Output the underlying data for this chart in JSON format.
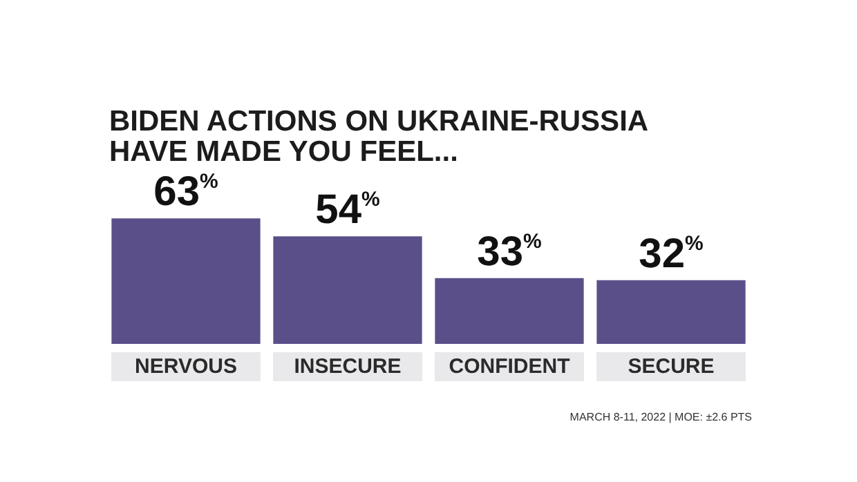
{
  "chart_data": {
    "type": "bar",
    "title": "BIDEN ACTIONS ON UKRAINE-RUSSIA\nHAVE MADE YOU FEEL...",
    "categories": [
      "NERVOUS",
      "INSECURE",
      "CONFIDENT",
      "SECURE"
    ],
    "values": [
      63,
      54,
      33,
      32
    ],
    "color": "#5b4f8a",
    "value_labels": [
      "63%",
      "54%",
      "33%",
      "32%"
    ],
    "annotations": [
      "MARCH 8-11, 2022 | MOE: ±2.6 PTS"
    ],
    "grid": false
  }
}
